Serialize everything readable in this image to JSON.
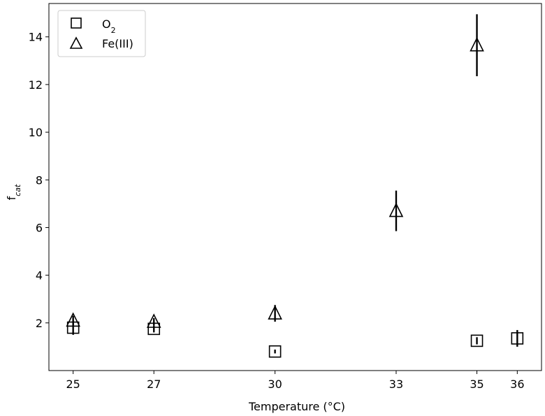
{
  "chart_data": {
    "type": "scatter",
    "title": "",
    "xlabel": "Temperature (°C)",
    "ylabel": {
      "main": "f",
      "sub": "cat"
    },
    "xlim": [
      24.4,
      36.6
    ],
    "ylim": [
      0.0,
      15.4
    ],
    "xticks": [
      25,
      27,
      30,
      33,
      35,
      36
    ],
    "yticks": [
      2,
      4,
      6,
      8,
      10,
      12,
      14
    ],
    "grid": false,
    "legend": {
      "placement": "top-left"
    },
    "series": [
      {
        "name": {
          "main": "O",
          "sub": "2"
        },
        "marker": "square",
        "points": [
          {
            "x": 25,
            "y": 1.8,
            "err": 0.3
          },
          {
            "x": 27,
            "y": 1.75,
            "err": 0.15
          },
          {
            "x": 30,
            "y": 0.8,
            "err": 0.08
          },
          {
            "x": 35,
            "y": 1.25,
            "err": 0.15
          },
          {
            "x": 36,
            "y": 1.35,
            "err": 0.35
          }
        ]
      },
      {
        "name": "Fe(III)",
        "marker": "triangle",
        "points": [
          {
            "x": 25,
            "y": 2.1,
            "err": 0.2
          },
          {
            "x": 27,
            "y": 2.05,
            "err": 0.15
          },
          {
            "x": 30,
            "y": 2.4,
            "err": 0.35
          },
          {
            "x": 33,
            "y": 6.7,
            "err": 0.85
          },
          {
            "x": 35,
            "y": 13.65,
            "err": 1.3
          }
        ]
      }
    ]
  }
}
